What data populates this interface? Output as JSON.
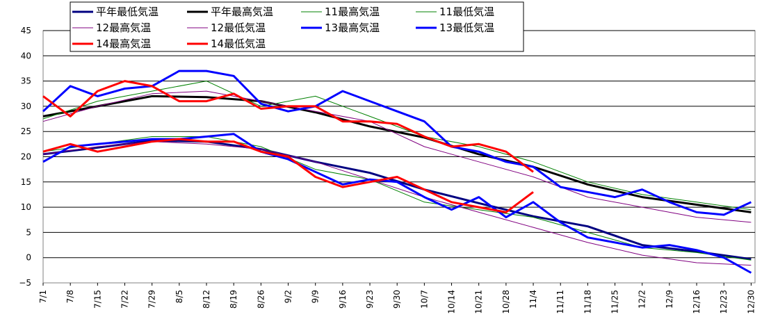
{
  "chart_data": {
    "type": "line",
    "title": "",
    "xlabel": "",
    "ylabel": "",
    "ylim": [
      -5,
      45
    ],
    "yticks": [
      -5,
      0,
      5,
      10,
      15,
      20,
      25,
      30,
      35,
      40,
      45
    ],
    "x_range": [
      "7/1",
      "12/31"
    ],
    "xticks": [
      "7/1",
      "7/8",
      "7/15",
      "7/22",
      "7/29",
      "8/5",
      "8/12",
      "8/19",
      "8/26",
      "9/2",
      "9/9",
      "9/16",
      "9/23",
      "9/30",
      "10/7",
      "10/14",
      "10/21",
      "10/28",
      "11/4",
      "11/11",
      "11/18",
      "11/25",
      "12/2",
      "12/9",
      "12/16",
      "12/23",
      "12/30"
    ],
    "grid": "horizontal",
    "legend_position": "top-left",
    "series": [
      {
        "name": "平年最低気温",
        "color": "#000080",
        "style": "thick",
        "x": [
          "7/1",
          "7/15",
          "7/29",
          "8/12",
          "8/26",
          "9/9",
          "9/23",
          "10/7",
          "10/21",
          "11/4",
          "11/18",
          "12/2",
          "12/16",
          "12/30"
        ],
        "y": [
          20.5,
          21.8,
          23.2,
          23.0,
          21.5,
          19.0,
          16.8,
          13.5,
          10.8,
          8.2,
          6.2,
          2.5,
          1.2,
          -0.3
        ]
      },
      {
        "name": "平年最高気温",
        "color": "#000000",
        "style": "thick",
        "x": [
          "7/1",
          "7/15",
          "7/29",
          "8/12",
          "8/26",
          "9/9",
          "9/23",
          "10/7",
          "10/21",
          "11/4",
          "11/18",
          "12/2",
          "12/16",
          "12/30"
        ],
        "y": [
          28.0,
          30.0,
          32.0,
          31.8,
          31.0,
          28.8,
          26.0,
          23.8,
          20.5,
          18.0,
          14.5,
          12.0,
          10.5,
          9.0
        ]
      },
      {
        "name": "11最高気温",
        "color": "#008000",
        "style": "thin",
        "x": [
          "7/1",
          "7/15",
          "7/29",
          "8/12",
          "8/26",
          "9/9",
          "9/23",
          "10/7",
          "10/21",
          "11/4",
          "11/18",
          "12/2",
          "12/16",
          "12/30"
        ],
        "y": [
          27.5,
          31.0,
          33.0,
          35.0,
          30.0,
          32.0,
          28.0,
          24.0,
          22.0,
          19.0,
          15.0,
          12.5,
          11.0,
          9.5
        ]
      },
      {
        "name": "11最低気温",
        "color": "#008000",
        "style": "thin",
        "x": [
          "7/1",
          "7/15",
          "7/29",
          "8/12",
          "8/26",
          "9/9",
          "9/23",
          "10/7",
          "10/21",
          "11/4",
          "11/18",
          "12/2",
          "12/16",
          "12/30"
        ],
        "y": [
          21.0,
          22.5,
          24.0,
          24.0,
          22.0,
          17.5,
          15.5,
          11.0,
          9.5,
          8.0,
          5.0,
          2.0,
          1.0,
          -0.5
        ]
      },
      {
        "name": "12最高気温",
        "color": "#800080",
        "style": "thin",
        "x": [
          "7/1",
          "7/15",
          "7/29",
          "8/12",
          "8/26",
          "9/9",
          "9/23",
          "10/7",
          "10/21",
          "11/4",
          "11/18",
          "12/2",
          "12/16",
          "12/30"
        ],
        "y": [
          27.0,
          30.0,
          32.5,
          33.0,
          31.0,
          29.0,
          27.0,
          22.0,
          19.0,
          16.0,
          12.0,
          10.0,
          8.0,
          7.0
        ]
      },
      {
        "name": "12最低気温",
        "color": "#800080",
        "style": "thin",
        "x": [
          "7/1",
          "7/15",
          "7/29",
          "8/12",
          "8/26",
          "9/9",
          "9/23",
          "10/7",
          "10/21",
          "11/4",
          "11/18",
          "12/2",
          "12/16",
          "12/30"
        ],
        "y": [
          20.5,
          22.0,
          23.0,
          22.5,
          21.5,
          19.0,
          15.5,
          12.0,
          9.0,
          6.0,
          3.0,
          0.5,
          -1.0,
          -1.5
        ]
      },
      {
        "name": "13最高気温",
        "color": "#0000FF",
        "style": "thick",
        "x": [
          "7/1",
          "7/8",
          "7/15",
          "7/22",
          "7/29",
          "8/5",
          "8/12",
          "8/19",
          "8/26",
          "9/2",
          "9/9",
          "9/16",
          "9/23",
          "9/30",
          "10/7",
          "10/14",
          "10/21",
          "10/28",
          "11/4",
          "11/11",
          "11/18",
          "11/25",
          "12/2",
          "12/9",
          "12/16",
          "12/23",
          "12/30"
        ],
        "y": [
          29.0,
          34.0,
          32.0,
          33.5,
          34.0,
          37.0,
          37.0,
          36.0,
          30.5,
          29.0,
          30.0,
          33.0,
          31.0,
          29.0,
          27.0,
          22.0,
          21.0,
          19.0,
          18.0,
          14.0,
          13.0,
          12.0,
          13.5,
          11.0,
          9.0,
          8.5,
          11.0
        ]
      },
      {
        "name": "13最低気温",
        "color": "#0000FF",
        "style": "thick",
        "x": [
          "7/1",
          "7/8",
          "7/15",
          "7/22",
          "7/29",
          "8/5",
          "8/12",
          "8/19",
          "8/26",
          "9/2",
          "9/9",
          "9/16",
          "9/23",
          "9/30",
          "10/7",
          "10/14",
          "10/21",
          "10/28",
          "11/4",
          "11/11",
          "11/18",
          "11/25",
          "12/2",
          "12/9",
          "12/16",
          "12/23",
          "12/30"
        ],
        "y": [
          19.0,
          22.0,
          22.5,
          23.0,
          23.5,
          23.5,
          24.0,
          24.5,
          21.0,
          19.5,
          17.0,
          14.5,
          15.5,
          15.0,
          12.0,
          9.5,
          12.0,
          8.0,
          11.0,
          7.0,
          4.0,
          3.0,
          2.0,
          2.5,
          1.5,
          0.0,
          -3.0
        ]
      },
      {
        "name": "14最高気温",
        "color": "#FF0000",
        "style": "thick",
        "x": [
          "7/1",
          "7/8",
          "7/15",
          "7/22",
          "7/29",
          "8/5",
          "8/12",
          "8/19",
          "8/26",
          "9/2",
          "9/9",
          "9/16",
          "9/23",
          "9/30",
          "10/7",
          "10/14",
          "10/21",
          "10/28",
          "11/4"
        ],
        "y": [
          32.0,
          28.0,
          33.0,
          35.0,
          34.0,
          31.0,
          31.0,
          32.5,
          29.5,
          30.0,
          30.0,
          27.0,
          27.0,
          26.5,
          24.0,
          22.0,
          22.5,
          21.0,
          17.0
        ]
      },
      {
        "name": "14最低気温",
        "color": "#FF0000",
        "style": "thick",
        "x": [
          "7/1",
          "7/8",
          "7/15",
          "7/22",
          "7/29",
          "8/5",
          "8/12",
          "8/19",
          "8/26",
          "9/2",
          "9/9",
          "9/16",
          "9/23",
          "9/30",
          "10/7",
          "10/14",
          "10/21",
          "10/28",
          "11/4"
        ],
        "y": [
          21.0,
          22.5,
          21.0,
          22.0,
          23.0,
          23.5,
          23.0,
          23.0,
          21.0,
          20.0,
          16.0,
          14.0,
          15.0,
          16.0,
          13.5,
          11.0,
          10.0,
          9.0,
          13.0
        ]
      }
    ]
  }
}
